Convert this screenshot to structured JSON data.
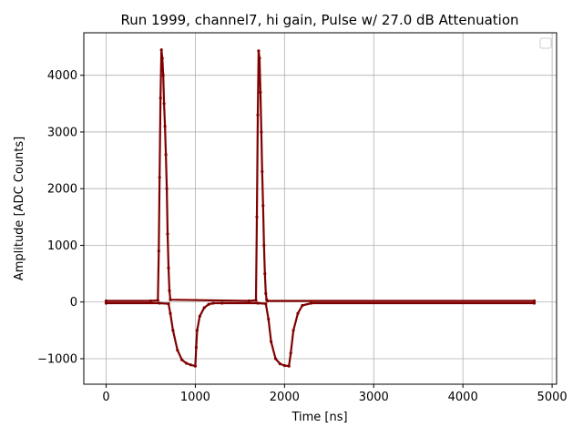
{
  "chart_data": {
    "type": "scatter",
    "title": "Run 1999, channel7, hi gain, Pulse w/ 27.0 dB Attenuation",
    "xlabel": "Time [ns]",
    "ylabel": "Amplitude [ADC Counts]",
    "xlim": [
      -250,
      5050
    ],
    "ylim": [
      -1450,
      4750
    ],
    "xticks": [
      0,
      1000,
      2000,
      3000,
      4000,
      5000
    ],
    "yticks": [
      -1000,
      0,
      1000,
      2000,
      3000,
      4000
    ],
    "xtick_labels": [
      "0",
      "1000",
      "2000",
      "3000",
      "4000",
      "5000"
    ],
    "ytick_labels": [
      "−1000",
      "0",
      "1000",
      "2000",
      "3000",
      "4000"
    ],
    "grid": true,
    "legend": "top-right (empty)",
    "marker_color": "#800000",
    "series": [
      {
        "x": [
          0,
          500,
          580,
          590,
          600,
          610,
          620,
          630,
          640,
          650,
          660,
          670,
          680,
          690,
          700,
          710,
          720,
          1600,
          1680,
          1690,
          1700,
          1710,
          1720,
          1730,
          1740,
          1750,
          1760,
          1770,
          1780,
          1790,
          1800,
          1810,
          4800
        ],
        "values": [
          20,
          20,
          30,
          900,
          2200,
          3600,
          4450,
          4300,
          4000,
          3500,
          3100,
          2600,
          2000,
          1200,
          600,
          200,
          40,
          20,
          30,
          1500,
          3300,
          4430,
          4300,
          3700,
          3000,
          2300,
          1700,
          1000,
          500,
          150,
          40,
          20,
          20
        ]
      },
      {
        "x": [
          0,
          600,
          700,
          720,
          750,
          800,
          850,
          900,
          950,
          1000,
          1010,
          1020,
          1050,
          1100,
          1150,
          1200,
          1300,
          1700,
          1790,
          1820,
          1850,
          1900,
          1950,
          2000,
          2050,
          2070,
          2100,
          2150,
          2200,
          2300,
          4800
        ],
        "values": [
          -20,
          -20,
          -30,
          -200,
          -500,
          -850,
          -1020,
          -1080,
          -1110,
          -1130,
          -800,
          -500,
          -250,
          -100,
          -40,
          -20,
          -20,
          -20,
          -30,
          -300,
          -700,
          -1000,
          -1090,
          -1120,
          -1130,
          -900,
          -500,
          -200,
          -60,
          -20,
          -20
        ]
      }
    ]
  }
}
